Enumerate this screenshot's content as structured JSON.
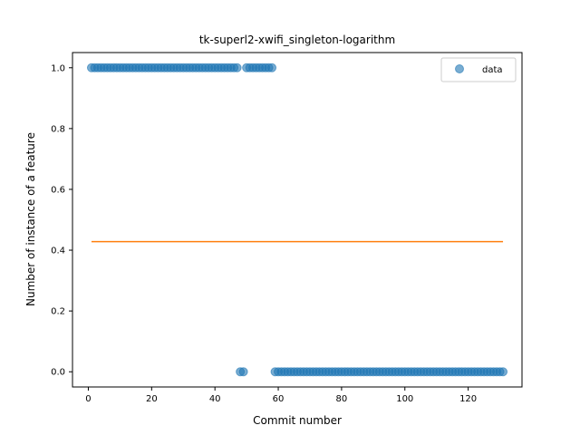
{
  "chart_data": {
    "type": "scatter",
    "title": "tk-superl2-xwifi_singleton-logarithm",
    "xlabel": "Commit number",
    "ylabel": "Number of instance of a feature",
    "xlim": [
      -5,
      137
    ],
    "ylim": [
      -0.05,
      1.05
    ],
    "xticks": [
      0,
      20,
      40,
      60,
      80,
      100,
      120
    ],
    "yticks": [
      0.0,
      0.2,
      0.4,
      0.6,
      0.8,
      1.0
    ],
    "xtick_labels": [
      "0",
      "20",
      "40",
      "60",
      "80",
      "100",
      "120"
    ],
    "ytick_labels": [
      "0.0",
      "0.2",
      "0.4",
      "0.6",
      "0.8",
      "1.0"
    ],
    "legend": {
      "position": "top-right",
      "entries": [
        "data"
      ]
    },
    "grid": false,
    "series": [
      {
        "name": "data",
        "kind": "scatter",
        "color": "#1f77b4",
        "segments": [
          {
            "x_start": 1,
            "x_end": 47,
            "y": 1
          },
          {
            "x_start": 48,
            "x_end": 49,
            "y": 0
          },
          {
            "x_start": 50,
            "x_end": 58,
            "y": 1
          },
          {
            "x_start": 59,
            "x_end": 131,
            "y": 0
          }
        ]
      },
      {
        "kind": "line",
        "color": "#ff7f0e",
        "x": [
          1,
          131
        ],
        "y": [
          0.428,
          0.428
        ]
      }
    ]
  }
}
